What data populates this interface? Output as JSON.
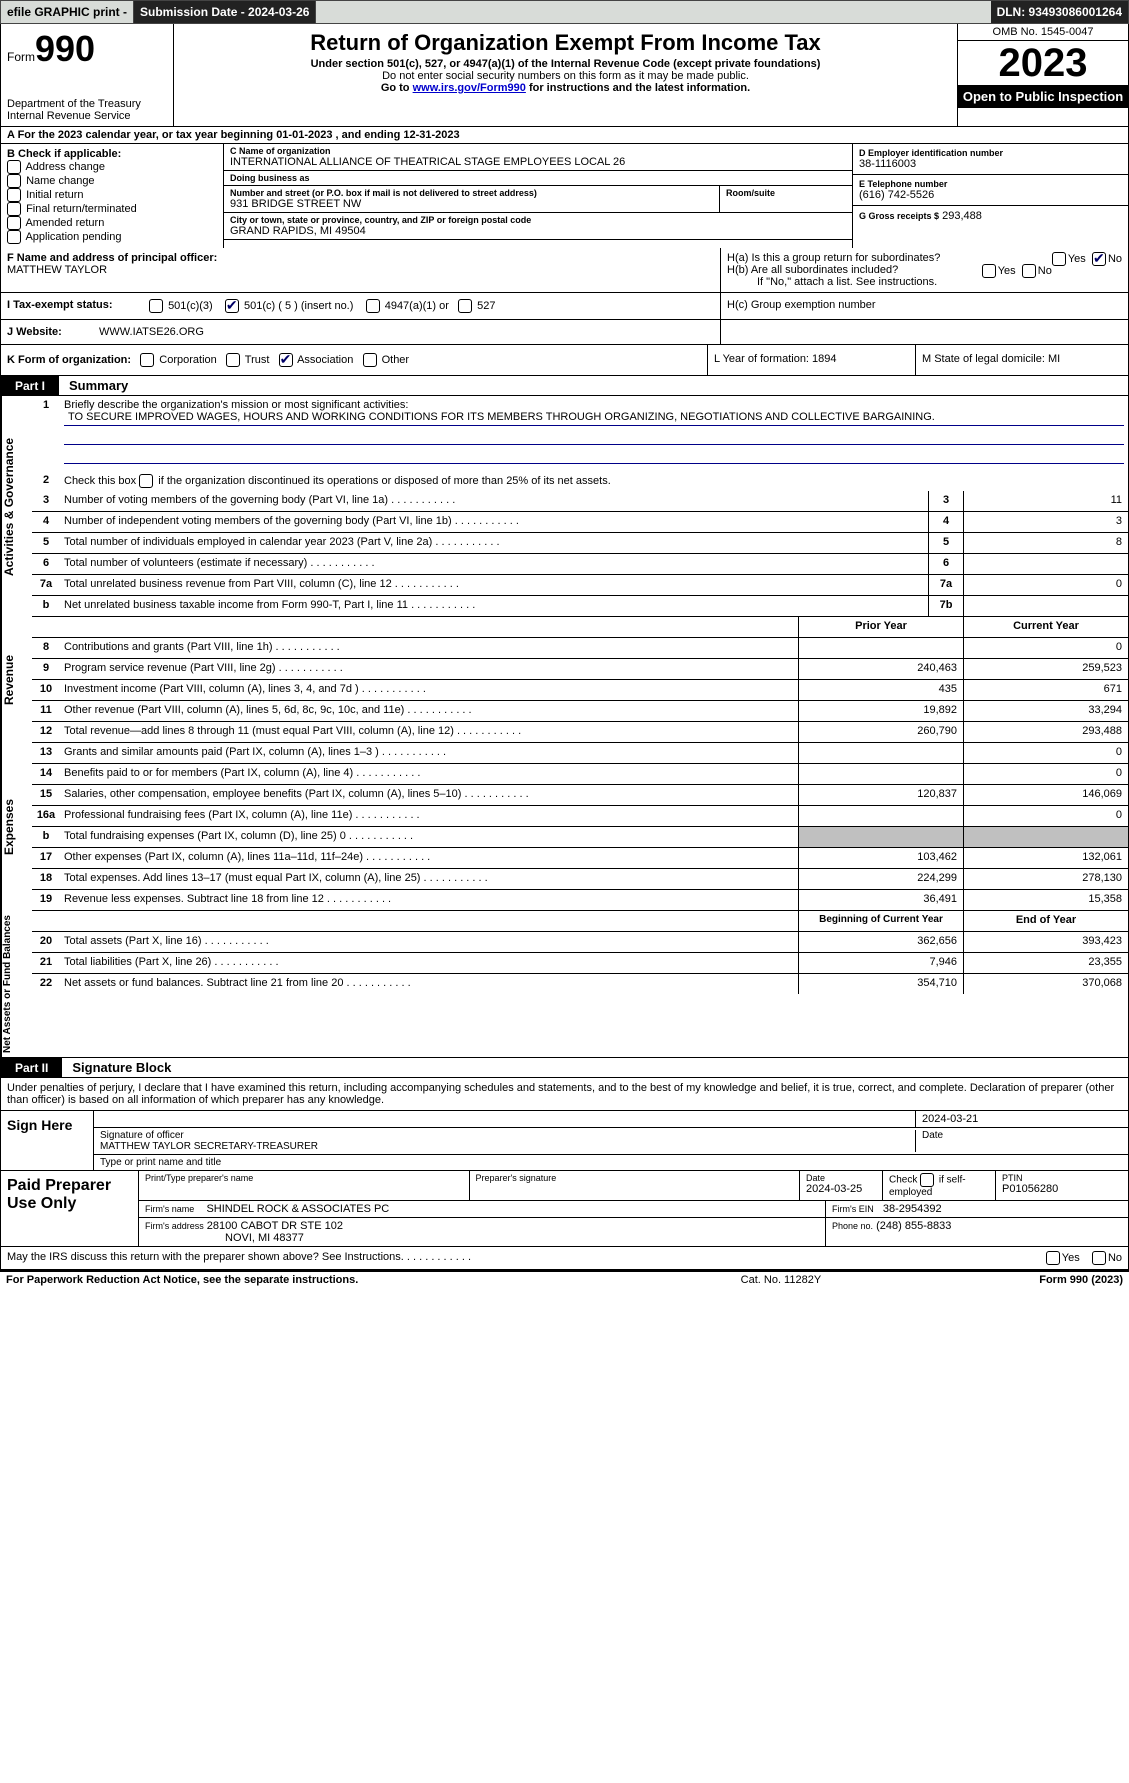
{
  "topbar": {
    "efile": "efile GRAPHIC print -",
    "submission_label": "Submission Date - 2024-03-26",
    "dln": "DLN: 93493086001264"
  },
  "header": {
    "form_label": "Form",
    "form_num": "990",
    "dept": "Department of the Treasury",
    "irs": "Internal Revenue Service",
    "title": "Return of Organization Exempt From Income Tax",
    "sub1": "Under section 501(c), 527, or 4947(a)(1) of the Internal Revenue Code (except private foundations)",
    "sub2": "Do not enter social security numbers on this form as it may be made public.",
    "sub3_pre": "Go to ",
    "sub3_link": "www.irs.gov/Form990",
    "sub3_post": " for instructions and the latest information.",
    "omb": "OMB No. 1545-0047",
    "year": "2023",
    "inspect": "Open to Public Inspection"
  },
  "row_a": "A   For the 2023 calendar year, or tax year beginning 01-01-2023    , and ending 12-31-2023",
  "col_b": {
    "title": "B Check if applicable:",
    "opts": [
      "Address change",
      "Name change",
      "Initial return",
      "Final return/terminated",
      "Amended return",
      "Application pending"
    ]
  },
  "col_c": {
    "name_lbl": "C Name of organization",
    "name": "INTERNATIONAL ALLIANCE OF THEATRICAL STAGE EMPLOYEES LOCAL 26",
    "dba_lbl": "Doing business as",
    "street_lbl": "Number and street (or P.O. box if mail is not delivered to street address)",
    "street": "931 BRIDGE STREET NW",
    "room_lbl": "Room/suite",
    "city_lbl": "City or town, state or province, country, and ZIP or foreign postal code",
    "city": "GRAND RAPIDS, MI  49504"
  },
  "col_d": {
    "d_lbl": "D Employer identification number",
    "d_val": "38-1116003",
    "e_lbl": "E Telephone number",
    "e_val": "(616) 742-5526",
    "g_lbl": "G Gross receipts $",
    "g_val": "293,488"
  },
  "row_f": {
    "lbl": "F  Name and address of principal officer:",
    "val": "MATTHEW TAYLOR"
  },
  "row_h": {
    "ha": "H(a)  Is this a group return for subordinates?",
    "hb": "H(b)  Are all subordinates included?",
    "hb_note": "If \"No,\" attach a list. See instructions.",
    "hc": "H(c)  Group exemption number"
  },
  "row_i": {
    "label": "I    Tax-exempt status:",
    "opt1": "501(c)(3)",
    "opt2": "501(c) ( 5 ) (insert no.)",
    "opt3": "4947(a)(1) or",
    "opt4": "527"
  },
  "row_j": {
    "label": "J    Website:",
    "val": "WWW.IATSE26.ORG"
  },
  "row_k": {
    "l": "K Form of organization:",
    "opts": [
      "Corporation",
      "Trust",
      "Association",
      "Other"
    ],
    "m": "L Year of formation: 1894",
    "n": "M State of legal domicile: MI"
  },
  "part1": {
    "hdr": "Part I",
    "title": "Summary",
    "side_gov": "Activities & Governance",
    "side_rev": "Revenue",
    "side_exp": "Expenses",
    "side_net": "Net Assets or Fund Balances",
    "line1_lbl": "Briefly describe the organization's mission or most significant activities:",
    "line1_val": "TO SECURE IMPROVED WAGES, HOURS AND WORKING CONDITIONS FOR ITS MEMBERS THROUGH ORGANIZING, NEGOTIATIONS AND COLLECTIVE BARGAINING.",
    "line2": "Check this box        if the organization discontinued its operations or disposed of more than 25% of its net assets.",
    "lines_gov": [
      {
        "n": "3",
        "d": "Number of voting members of the governing body (Part VI, line 1a)",
        "c1": "3",
        "v": "11"
      },
      {
        "n": "4",
        "d": "Number of independent voting members of the governing body (Part VI, line 1b)",
        "c1": "4",
        "v": "3"
      },
      {
        "n": "5",
        "d": "Total number of individuals employed in calendar year 2023 (Part V, line 2a)",
        "c1": "5",
        "v": "8"
      },
      {
        "n": "6",
        "d": "Total number of volunteers (estimate if necessary)",
        "c1": "6",
        "v": ""
      },
      {
        "n": "7a",
        "d": "Total unrelated business revenue from Part VIII, column (C), line 12",
        "c1": "7a",
        "v": "0"
      },
      {
        "n": "b",
        "d": "Net unrelated business taxable income from Form 990-T, Part I, line 11",
        "c1": "7b",
        "v": ""
      }
    ],
    "rev_hdr": {
      "py": "Prior Year",
      "cy": "Current Year"
    },
    "lines_rev": [
      {
        "n": "8",
        "d": "Contributions and grants (Part VIII, line 1h)",
        "py": "",
        "cy": "0"
      },
      {
        "n": "9",
        "d": "Program service revenue (Part VIII, line 2g)",
        "py": "240,463",
        "cy": "259,523"
      },
      {
        "n": "10",
        "d": "Investment income (Part VIII, column (A), lines 3, 4, and 7d )",
        "py": "435",
        "cy": "671"
      },
      {
        "n": "11",
        "d": "Other revenue (Part VIII, column (A), lines 5, 6d, 8c, 9c, 10c, and 11e)",
        "py": "19,892",
        "cy": "33,294"
      },
      {
        "n": "12",
        "d": "Total revenue—add lines 8 through 11 (must equal Part VIII, column (A), line 12)",
        "py": "260,790",
        "cy": "293,488"
      }
    ],
    "lines_exp": [
      {
        "n": "13",
        "d": "Grants and similar amounts paid (Part IX, column (A), lines 1–3 )",
        "py": "",
        "cy": "0"
      },
      {
        "n": "14",
        "d": "Benefits paid to or for members (Part IX, column (A), line 4)",
        "py": "",
        "cy": "0"
      },
      {
        "n": "15",
        "d": "Salaries, other compensation, employee benefits (Part IX, column (A), lines 5–10)",
        "py": "120,837",
        "cy": "146,069"
      },
      {
        "n": "16a",
        "d": "Professional fundraising fees (Part IX, column (A), line 11e)",
        "py": "",
        "cy": "0"
      },
      {
        "n": "b",
        "d": "Total fundraising expenses (Part IX, column (D), line 25) 0",
        "py": "",
        "cy": "",
        "gray": true
      },
      {
        "n": "17",
        "d": "Other expenses (Part IX, column (A), lines 11a–11d, 11f–24e)",
        "py": "103,462",
        "cy": "132,061"
      },
      {
        "n": "18",
        "d": "Total expenses. Add lines 13–17 (must equal Part IX, column (A), line 25)",
        "py": "224,299",
        "cy": "278,130"
      },
      {
        "n": "19",
        "d": "Revenue less expenses. Subtract line 18 from line 12",
        "py": "36,491",
        "cy": "15,358"
      }
    ],
    "net_hdr": {
      "py": "Beginning of Current Year",
      "cy": "End of Year"
    },
    "lines_net": [
      {
        "n": "20",
        "d": "Total assets (Part X, line 16)",
        "py": "362,656",
        "cy": "393,423"
      },
      {
        "n": "21",
        "d": "Total liabilities (Part X, line 26)",
        "py": "7,946",
        "cy": "23,355"
      },
      {
        "n": "22",
        "d": "Net assets or fund balances. Subtract line 21 from line 20",
        "py": "354,710",
        "cy": "370,068"
      }
    ]
  },
  "part2": {
    "hdr": "Part II",
    "title": "Signature Block",
    "text": "Under penalties of perjury, I declare that I have examined this return, including accompanying schedules and statements, and to the best of my knowledge and belief, it is true, correct, and complete. Declaration of preparer (other than officer) is based on all information of which preparer has any knowledge."
  },
  "sign": {
    "lbl": "Sign Here",
    "date": "2024-03-21",
    "sig_lbl": "Signature of officer",
    "name": "MATTHEW TAYLOR  SECRETARY-TREASURER",
    "name_lbl": "Type or print name and title"
  },
  "paid": {
    "lbl": "Paid Preparer Use Only",
    "prep_name_lbl": "Print/Type preparer's name",
    "prep_sig_lbl": "Preparer's signature",
    "date_lbl": "Date",
    "date_val": "2024-03-25",
    "check_lbl": "Check        if self-employed",
    "ptin_lbl": "PTIN",
    "ptin_val": "P01056280",
    "firm_lbl": "Firm's name",
    "firm_val": "SHINDEL ROCK & ASSOCIATES PC",
    "ein_lbl": "Firm's EIN",
    "ein_val": "38-2954392",
    "addr_lbl": "Firm's address",
    "addr_val": "28100 CABOT DR STE 102",
    "addr_val2": "NOVI, MI  48377",
    "phone_lbl": "Phone no.",
    "phone_val": "(248) 855-8833"
  },
  "discuss": "May the IRS discuss this return with the preparer shown above? See Instructions.",
  "footer": {
    "l": "For Paperwork Reduction Act Notice, see the separate instructions.",
    "c": "Cat. No. 11282Y",
    "r": "Form 990 (2023)"
  },
  "yesno": {
    "yes": "Yes",
    "no": "No"
  }
}
